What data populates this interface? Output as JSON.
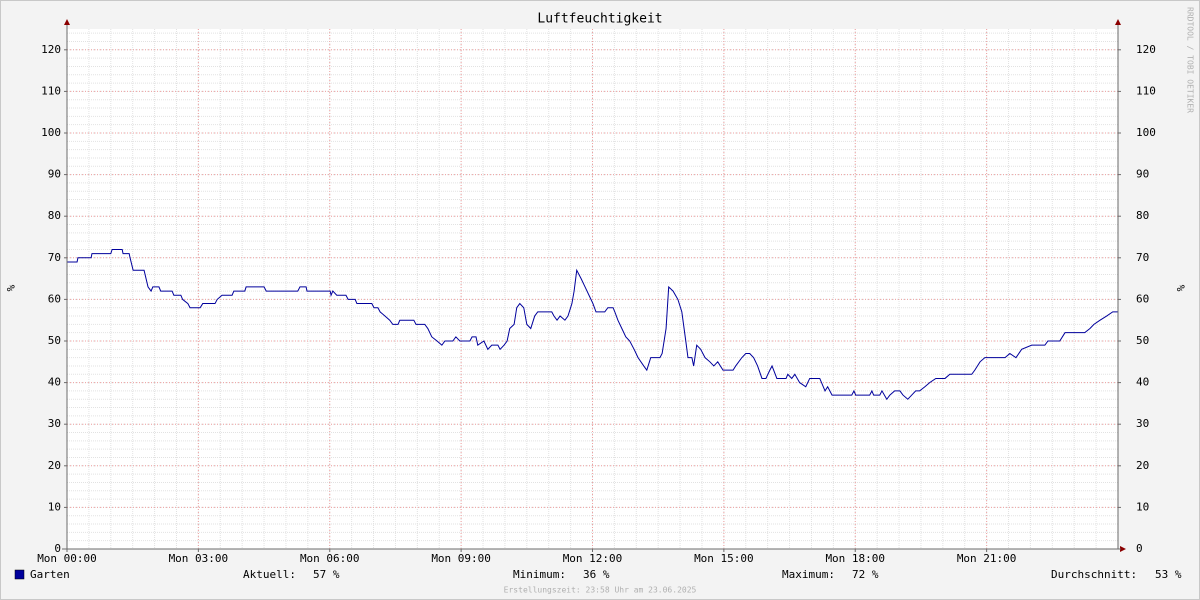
{
  "chart_data": {
    "type": "line",
    "title": "Luftfeuchtigkeit",
    "ylabel": "%",
    "y2label": "%",
    "watermark": "RRDTOOL / TOBI OETIKER",
    "footer": "Erstellungszeit: 23:58 Uhr am 23.06.2025",
    "xlim": [
      0,
      24
    ],
    "xticks": [
      {
        "value": 0,
        "label": "Mon 00:00"
      },
      {
        "value": 3,
        "label": "Mon 03:00"
      },
      {
        "value": 6,
        "label": "Mon 06:00"
      },
      {
        "value": 9,
        "label": "Mon 09:00"
      },
      {
        "value": 12,
        "label": "Mon 12:00"
      },
      {
        "value": 15,
        "label": "Mon 15:00"
      },
      {
        "value": 18,
        "label": "Mon 18:00"
      },
      {
        "value": 21,
        "label": "Mon 21:00"
      }
    ],
    "ylim": [
      0,
      125
    ],
    "yticks": [
      0,
      10,
      20,
      30,
      40,
      50,
      60,
      70,
      80,
      90,
      100,
      110,
      120
    ],
    "y2lim": [
      0,
      125
    ],
    "y2ticks": [
      0,
      10,
      20,
      30,
      40,
      50,
      60,
      70,
      80,
      90,
      100,
      110,
      120
    ],
    "grid": true,
    "minor_grid": true,
    "x": [
      0,
      0.23,
      0.25,
      0.55,
      0.57,
      1.0,
      1.03,
      1.26,
      1.28,
      1.42,
      1.44,
      1.51,
      1.76,
      1.85,
      1.92,
      1.96,
      2.1,
      2.14,
      2.4,
      2.44,
      2.6,
      2.64,
      2.76,
      2.81,
      3.04,
      3.1,
      3.38,
      3.43,
      3.54,
      3.77,
      3.81,
      4.06,
      4.09,
      4.5,
      4.55,
      5.27,
      5.32,
      5.46,
      5.48,
      6.01,
      6.03,
      6.07,
      6.16,
      6.37,
      6.42,
      6.58,
      6.62,
      6.96,
      7.01,
      7.1,
      7.15,
      7.26,
      7.37,
      7.44,
      7.56,
      7.6,
      7.92,
      7.97,
      8.17,
      8.24,
      8.33,
      8.45,
      8.56,
      8.63,
      8.81,
      8.88,
      8.97,
      9.2,
      9.25,
      9.34,
      9.38,
      9.52,
      9.61,
      9.7,
      9.84,
      9.89,
      9.98,
      10.05,
      10.11,
      10.21,
      10.27,
      10.34,
      10.43,
      10.5,
      10.59,
      10.68,
      10.75,
      11.07,
      11.12,
      11.19,
      11.26,
      11.37,
      11.44,
      11.53,
      11.58,
      11.64,
      11.74,
      11.83,
      11.92,
      12.01,
      12.08,
      12.28,
      12.35,
      12.47,
      12.51,
      12.58,
      12.67,
      12.76,
      12.85,
      12.95,
      13.04,
      13.17,
      13.24,
      13.33,
      13.54,
      13.59,
      13.68,
      13.74,
      13.84,
      13.95,
      14.04,
      14.13,
      14.18,
      14.27,
      14.31,
      14.38,
      14.47,
      14.57,
      14.68,
      14.77,
      14.86,
      14.98,
      15.21,
      15.27,
      15.41,
      15.5,
      15.59,
      15.68,
      15.77,
      15.87,
      15.96,
      16.05,
      16.1,
      16.21,
      16.42,
      16.46,
      16.55,
      16.62,
      16.73,
      16.87,
      16.96,
      17.19,
      17.31,
      17.37,
      17.47,
      17.92,
      17.97,
      18.01,
      18.33,
      18.38,
      18.42,
      18.56,
      18.61,
      18.72,
      18.79,
      18.9,
      19.02,
      19.09,
      19.2,
      19.29,
      19.38,
      19.47,
      19.59,
      19.7,
      19.84,
      20.05,
      20.16,
      20.66,
      20.73,
      20.85,
      20.96,
      21.42,
      21.53,
      21.67,
      21.8,
      22.03,
      22.33,
      22.4,
      22.67,
      22.79,
      23.24,
      23.36,
      23.45,
      23.59,
      23.74,
      23.88,
      24
    ],
    "series": [
      {
        "name": "Garten",
        "color": "#00009c",
        "values": [
          69,
          69,
          70,
          70,
          71,
          71,
          72,
          72,
          71,
          71,
          70,
          67,
          67,
          63,
          62,
          63,
          63,
          62,
          62,
          61,
          61,
          60,
          59,
          58,
          58,
          59,
          59,
          60,
          61,
          61,
          62,
          62,
          63,
          63,
          62,
          62,
          63,
          63,
          62,
          62,
          61,
          62,
          61,
          61,
          60,
          60,
          59,
          59,
          58,
          58,
          57,
          56,
          55,
          54,
          54,
          55,
          55,
          54,
          54,
          53,
          51,
          50,
          49,
          50,
          50,
          51,
          50,
          50,
          51,
          51,
          49,
          50,
          48,
          49,
          49,
          48,
          49,
          50,
          53,
          54,
          58,
          59,
          58,
          54,
          53,
          56,
          57,
          57,
          56,
          55,
          56,
          55,
          56,
          59,
          62,
          67,
          65,
          63,
          61,
          59,
          57,
          57,
          58,
          58,
          57,
          55,
          53,
          51,
          50,
          48,
          46,
          44,
          43,
          46,
          46,
          47,
          53,
          63,
          62,
          60,
          57,
          50,
          46,
          46,
          44,
          49,
          48,
          46,
          45,
          44,
          45,
          43,
          43,
          44,
          46,
          47,
          47,
          46,
          44,
          41,
          41,
          43,
          44,
          41,
          41,
          42,
          41,
          42,
          40,
          39,
          41,
          41,
          38,
          39,
          37,
          37,
          38,
          37,
          37,
          38,
          37,
          37,
          38,
          36,
          37,
          38,
          38,
          37,
          36,
          37,
          38,
          38,
          39,
          40,
          41,
          41,
          42,
          42,
          43,
          45,
          46,
          46,
          47,
          46,
          48,
          49,
          49,
          50,
          50,
          52,
          52,
          53,
          54,
          55,
          56,
          57,
          57
        ]
      }
    ],
    "stats": [
      {
        "label": "Aktuell:",
        "value": 57,
        "value_label": "57 %"
      },
      {
        "label": "Minimum:",
        "value": 36,
        "value_label": "36 %"
      },
      {
        "label": "Maximum:",
        "value": 72,
        "value_label": "72 %"
      },
      {
        "label": "Durchschnitt:",
        "value": 53,
        "value_label": "53 %"
      }
    ]
  }
}
